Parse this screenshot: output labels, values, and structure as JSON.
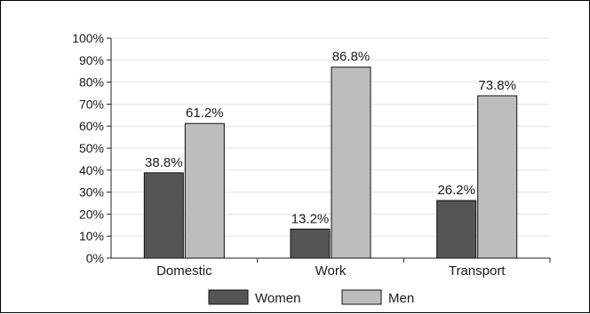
{
  "chart_data": {
    "type": "bar",
    "categories": [
      "Domestic",
      "Work",
      "Transport"
    ],
    "series": [
      {
        "name": "Women",
        "color": "#555555",
        "values": [
          38.8,
          13.2,
          26.2
        ],
        "labels": [
          "38.8%",
          "13.2%",
          "26.2%"
        ]
      },
      {
        "name": "Men",
        "color": "#bdbdbd",
        "values": [
          61.2,
          86.8,
          73.8
        ],
        "labels": [
          "61.2%",
          "86.8%",
          "73.8%"
        ]
      }
    ],
    "y_ticks": [
      "0%",
      "10%",
      "20%",
      "30%",
      "40%",
      "50%",
      "60%",
      "70%",
      "80%",
      "90%",
      "100%"
    ],
    "ylim": [
      0,
      100
    ],
    "grid": true,
    "legend_position": "bottom",
    "title": "",
    "xlabel": "",
    "ylabel": ""
  }
}
